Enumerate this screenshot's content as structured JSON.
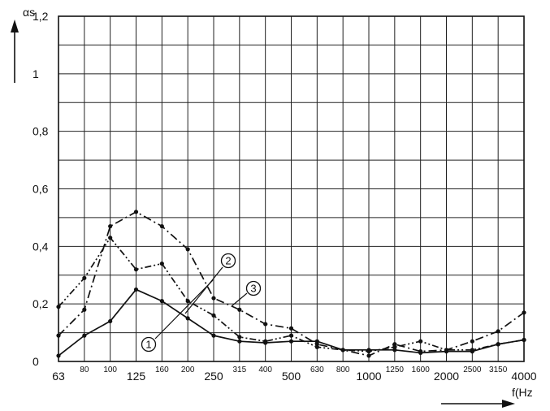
{
  "chart_data": {
    "type": "line",
    "ylabel": "αs",
    "xlabel": "f(Hz",
    "ylim": [
      0,
      1.2
    ],
    "y_ticks": [
      "0",
      "0,2",
      "0,4",
      "0,6",
      "0,8",
      "1",
      "1,2"
    ],
    "x_categories": [
      "63",
      "80",
      "100",
      "125",
      "160",
      "200",
      "250",
      "315",
      "400",
      "500",
      "630",
      "800",
      "1000",
      "1250",
      "1600",
      "2000",
      "2500",
      "3150",
      "4000"
    ],
    "x_major": [
      "63",
      "125",
      "250",
      "500",
      "1000",
      "2000",
      "4000"
    ],
    "grid": true,
    "series": [
      {
        "name": "1",
        "style": "solid",
        "values": [
          0.02,
          0.09,
          0.14,
          0.25,
          0.21,
          0.15,
          0.09,
          0.07,
          0.065,
          0.07,
          0.07,
          0.04,
          0.04,
          0.04,
          0.03,
          0.035,
          0.035,
          0.06,
          0.075
        ]
      },
      {
        "name": "2",
        "style": "dash-dot",
        "values": [
          0.09,
          0.18,
          0.47,
          0.52,
          0.47,
          0.39,
          0.22,
          0.18,
          0.13,
          0.115,
          0.06,
          0.04,
          0.02,
          0.06,
          0.035,
          0.04,
          0.07,
          0.105,
          0.17
        ]
      },
      {
        "name": "3",
        "style": "dash-dot-dot",
        "values": [
          0.19,
          0.29,
          0.43,
          0.32,
          0.34,
          0.21,
          0.16,
          0.085,
          0.07,
          0.09,
          0.05,
          0.04,
          0.035,
          0.05,
          0.07,
          0.04,
          0.04,
          0.06,
          0.075
        ]
      }
    ],
    "series_markers": [
      "1",
      "2",
      "3"
    ]
  }
}
